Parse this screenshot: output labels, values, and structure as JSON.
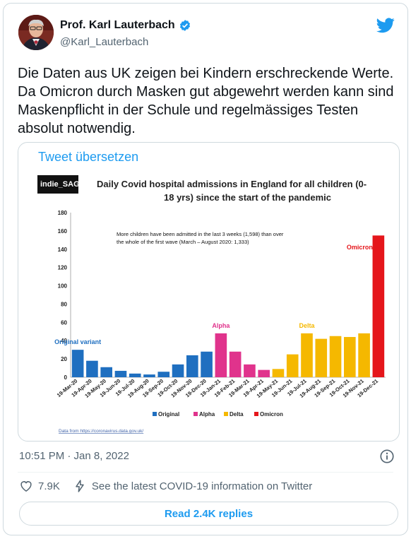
{
  "author": {
    "name": "Prof. Karl Lauterbach",
    "handle": "@Karl_Lauterbach",
    "verified": true,
    "icons": [
      "avatar",
      "verified-badge-icon",
      "twitter-bird-icon"
    ]
  },
  "tweet": {
    "text": "Die Daten aus UK zeigen bei Kindern erschreckende Werte. Da Omicron durch Masken gut abgewehrt werden kann sind Maskenpflicht in der Schule und regelmässiges Testen absolut notwendig.",
    "translate_label": "Tweet übersetzen",
    "timestamp": "10:51 PM · Jan 8, 2022"
  },
  "chart": {
    "logo_text": "indie_SAGE",
    "title_line1": "Daily Covid hospital admissions in England for all children (0-",
    "title_line2": "18 yrs) since the start of the pandemic",
    "annotation_line1": "More children have been admitted in the last 3 weeks (1,598) than over",
    "annotation_line2": "the whole of the first wave (March – August 2020: 1,333)",
    "source": "Data from https://coronavirus.data.gov.uk/"
  },
  "chart_data": {
    "type": "bar",
    "ylim": [
      0,
      180
    ],
    "y_ticks": [
      "0",
      "20",
      "40",
      "60",
      "80",
      "100",
      "120",
      "140",
      "160",
      "180"
    ],
    "x_tick_labels": [
      "19-Mar-20",
      "19-Apr-20",
      "19-May-20",
      "19-Jun-20",
      "19-Jul-20",
      "19-Aug-20",
      "19-Sep-20",
      "19-Oct-20",
      "19-Nov-20",
      "19-Dec-20",
      "19-Jan-21",
      "19-Feb-21",
      "19-Mar-21",
      "19-Apr-21",
      "19-May-21",
      "19-Jun-21",
      "19-Jul-21",
      "19-Aug-21",
      "19-Sep-21",
      "19-Oct-21",
      "19-Nov-21",
      "19-Dec-21"
    ],
    "series": [
      {
        "name": "Original",
        "color": "#1f6fc0",
        "label": "Original variant",
        "x": [
          "19-Mar-20",
          "19-Apr-20",
          "19-May-20",
          "19-Jun-20",
          "19-Jul-20",
          "19-Aug-20",
          "19-Sep-20",
          "19-Oct-20",
          "19-Nov-20",
          "19-Dec-20"
        ],
        "values": [
          30,
          18,
          11,
          7,
          4,
          3,
          6,
          14,
          24,
          28
        ]
      },
      {
        "name": "Alpha",
        "color": "#e0338c",
        "label": "Alpha",
        "x": [
          "19-Jan-21",
          "19-Feb-21",
          "19-Mar-21",
          "19-Apr-21"
        ],
        "values": [
          48,
          28,
          14,
          8
        ]
      },
      {
        "name": "Delta",
        "color": "#f5b800",
        "label": "Delta",
        "x": [
          "19-May-21",
          "19-Jun-21",
          "19-Jul-21",
          "19-Aug-21",
          "19-Sep-21",
          "19-Oct-21",
          "19-Nov-21"
        ],
        "values": [
          9,
          25,
          48,
          42,
          45,
          44,
          48
        ]
      },
      {
        "name": "Omicron",
        "color": "#e5161b",
        "label": "Omicron",
        "x": [
          "19-Dec-21"
        ],
        "values": [
          155
        ]
      }
    ],
    "legend": [
      "Original",
      "Alpha",
      "Delta",
      "Omicron"
    ],
    "legend_placement": "bottom"
  },
  "engagement": {
    "likes": "7.9K",
    "covid_info": "See the latest COVID-19 information on Twitter",
    "read_replies": "Read 2.4K replies"
  },
  "colors": {
    "accent": "#1d9bf0",
    "text": "#0f1419",
    "secondary": "#536471"
  }
}
